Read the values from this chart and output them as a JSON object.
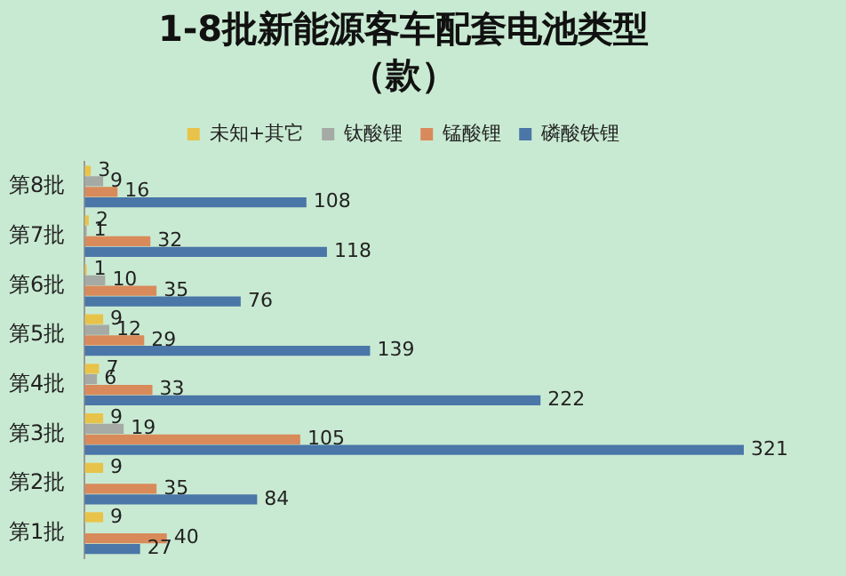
{
  "chart_data": {
    "type": "bar",
    "orientation": "horizontal",
    "title": "1-8批新能源客车配套电池类型",
    "subtitle": "（款）",
    "categories": [
      "第8批",
      "第7批",
      "第6批",
      "第5批",
      "第4批",
      "第3批",
      "第2批",
      "第1批"
    ],
    "series": [
      {
        "name": "未知+其它",
        "color": "#e8c34a",
        "values": [
          3,
          2,
          1,
          9,
          7,
          9,
          9,
          9
        ]
      },
      {
        "name": "钛酸锂",
        "color": "#a5aaa5",
        "values": [
          9,
          1,
          10,
          12,
          6,
          19,
          null,
          null
        ]
      },
      {
        "name": "锰酸锂",
        "color": "#d98a5a",
        "values": [
          16,
          32,
          35,
          29,
          33,
          105,
          35,
          40
        ]
      },
      {
        "name": "磷酸铁锂",
        "color": "#4a76a8",
        "values": [
          108,
          118,
          76,
          139,
          222,
          321,
          84,
          27
        ]
      }
    ],
    "data_labels": true,
    "legend": "top",
    "tick_labels": "y"
  }
}
